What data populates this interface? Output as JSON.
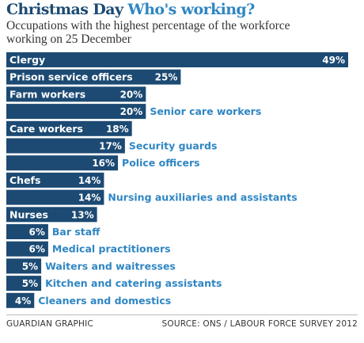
{
  "header": {
    "title_part1": "Christmas Day",
    "title_part2": "Who's working?",
    "subtitle": "Occupations with the highest percentage of the workforce working on 25 December"
  },
  "footer": {
    "credit": "GUARDIAN GRAPHIC",
    "source": "SOURCE: ONS / LABOUR FORCE SURVEY 2012"
  },
  "colors": {
    "bar": "#1c4a73",
    "title_accent": "#2f86c3",
    "outside_label": "#2f86c3"
  },
  "chart_data": {
    "type": "bar",
    "orientation": "horizontal",
    "categories": [
      "Clergy",
      "Prison service officers",
      "Farm workers",
      "Senior care workers",
      "Care workers",
      "Security guards",
      "Police officers",
      "Chefs",
      "Nursing auxiliaries and assistants",
      "Nurses",
      "Bar staff",
      "Medical practitioners",
      "Waiters and waitresses",
      "Kitchen and catering assistants",
      "Cleaners and domestics"
    ],
    "values": [
      49,
      25,
      20,
      20,
      18,
      17,
      16,
      14,
      14,
      13,
      6,
      6,
      5,
      5,
      4
    ],
    "value_labels": [
      "49%",
      "25%",
      "20%",
      "20%",
      "18%",
      "17%",
      "16%",
      "14%",
      "14%",
      "13%",
      "6%",
      "6%",
      "5%",
      "5%",
      "4%"
    ],
    "xlim": [
      0,
      49
    ],
    "grid": false,
    "legend": "none"
  }
}
